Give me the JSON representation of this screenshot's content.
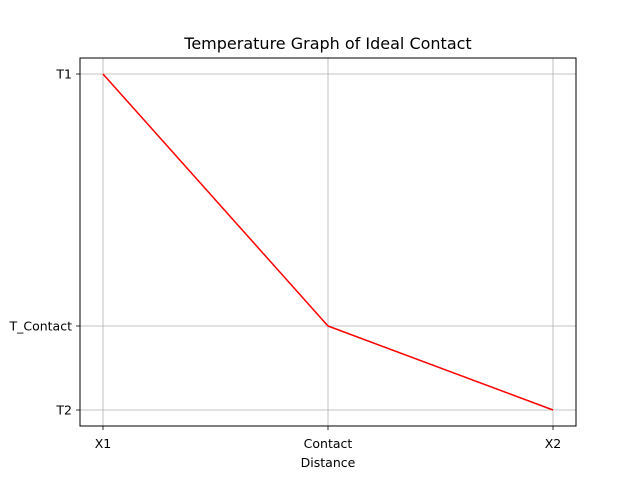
{
  "chart_data": {
    "type": "line",
    "title": "Temperature Graph of Ideal Contact",
    "xlabel": "Distance",
    "ylabel": "",
    "x_ticks": [
      "X1",
      "Contact",
      "X2"
    ],
    "y_ticks": [
      "T2",
      "T_Contact",
      "T1"
    ],
    "grid": true,
    "legend": "none",
    "series": [
      {
        "color": "#ff0000",
        "points": [
          {
            "x": "X1",
            "y": "T1"
          },
          {
            "x": "Contact",
            "y": "T_Contact"
          },
          {
            "x": "X2",
            "y": "T2"
          }
        ]
      }
    ]
  }
}
